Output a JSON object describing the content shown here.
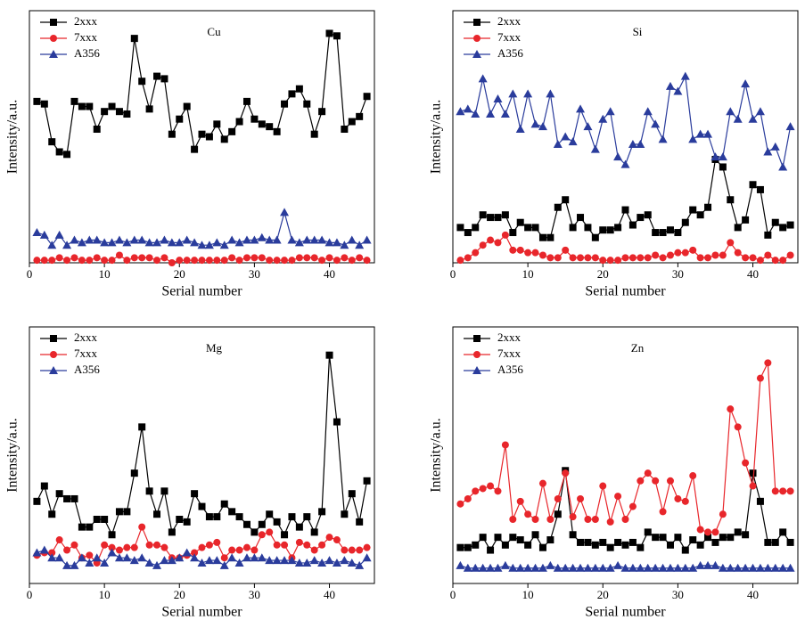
{
  "chart_data": [
    {
      "type": "line",
      "title": "Cu",
      "xlabel": "Serial number",
      "ylabel": "Intensity/a.u.",
      "legend": "upper left",
      "xlim": [
        0,
        46
      ],
      "xticks": [
        0,
        10,
        20,
        30,
        40
      ],
      "ylim": [
        0,
        100
      ],
      "x": [
        1,
        2,
        3,
        4,
        5,
        6,
        7,
        8,
        9,
        10,
        11,
        12,
        13,
        14,
        15,
        16,
        17,
        18,
        19,
        20,
        21,
        22,
        23,
        24,
        25,
        26,
        27,
        28,
        29,
        30,
        31,
        32,
        33,
        34,
        35,
        36,
        37,
        38,
        39,
        40,
        41,
        42,
        43,
        44,
        45
      ],
      "series": [
        {
          "name": "2xxx",
          "color": "#000000",
          "marker": "square",
          "values": [
            64,
            63,
            48,
            44,
            43,
            64,
            62,
            62,
            53,
            60,
            62,
            60,
            59,
            89,
            72,
            61,
            74,
            73,
            51,
            57,
            62,
            45,
            51,
            50,
            55,
            49,
            52,
            56,
            64,
            57,
            55,
            54,
            52,
            63,
            67,
            69,
            63,
            51,
            60,
            91,
            90,
            53,
            56,
            58,
            66
          ]
        },
        {
          "name": "7xxx",
          "color": "#e8262b",
          "marker": "circle",
          "values": [
            1,
            1,
            1,
            2,
            1,
            2,
            1,
            1,
            2,
            1,
            1,
            3,
            1,
            2,
            2,
            2,
            1,
            2,
            0,
            1,
            1,
            1,
            1,
            1,
            1,
            1,
            2,
            1,
            2,
            2,
            2,
            1,
            1,
            1,
            1,
            2,
            2,
            2,
            1,
            2,
            1,
            2,
            1,
            2,
            1
          ]
        },
        {
          "name": "A356",
          "color": "#2a3c9c",
          "marker": "triangle",
          "values": [
            12,
            11,
            7,
            11,
            7,
            9,
            8,
            9,
            9,
            8,
            8,
            9,
            8,
            9,
            9,
            8,
            8,
            9,
            8,
            8,
            9,
            8,
            7,
            7,
            8,
            7,
            9,
            8,
            9,
            9,
            10,
            9,
            9,
            20,
            9,
            8,
            9,
            9,
            9,
            8,
            8,
            7,
            9,
            7,
            9
          ]
        }
      ]
    },
    {
      "type": "line",
      "title": "Si",
      "xlabel": "Serial number",
      "ylabel": "Intensity/a.u.",
      "legend": "upper left",
      "xlim": [
        0,
        46
      ],
      "xticks": [
        0,
        10,
        20,
        30,
        40
      ],
      "ylim": [
        0,
        100
      ],
      "x": [
        1,
        2,
        3,
        4,
        5,
        6,
        7,
        8,
        9,
        10,
        11,
        12,
        13,
        14,
        15,
        16,
        17,
        18,
        19,
        20,
        21,
        22,
        23,
        24,
        25,
        26,
        27,
        28,
        29,
        30,
        31,
        32,
        33,
        34,
        35,
        36,
        37,
        38,
        39,
        40,
        41,
        42,
        43,
        44,
        45
      ],
      "series": [
        {
          "name": "2xxx",
          "color": "#000000",
          "marker": "square",
          "values": [
            14,
            12,
            14,
            19,
            18,
            18,
            19,
            12,
            16,
            14,
            14,
            10,
            10,
            22,
            25,
            14,
            18,
            14,
            10,
            13,
            13,
            14,
            21,
            15,
            18,
            19,
            12,
            12,
            13,
            12,
            16,
            21,
            19,
            22,
            41,
            38,
            25,
            14,
            17,
            31,
            29,
            11,
            16,
            14,
            15
          ]
        },
        {
          "name": "7xxx",
          "color": "#e8262b",
          "marker": "circle",
          "values": [
            1,
            2,
            4,
            7,
            9,
            8,
            11,
            5,
            5,
            4,
            4,
            3,
            2,
            2,
            5,
            2,
            2,
            2,
            2,
            1,
            1,
            1,
            2,
            2,
            2,
            2,
            3,
            2,
            3,
            4,
            4,
            5,
            2,
            2,
            3,
            3,
            8,
            4,
            2,
            2,
            1,
            3,
            1,
            1,
            3
          ]
        },
        {
          "name": "A356",
          "color": "#2a3c9c",
          "marker": "triangle",
          "values": [
            60,
            61,
            59,
            73,
            59,
            65,
            59,
            67,
            53,
            67,
            55,
            54,
            67,
            47,
            50,
            48,
            61,
            54,
            45,
            57,
            60,
            42,
            39,
            47,
            47,
            60,
            55,
            49,
            70,
            68,
            74,
            49,
            51,
            51,
            42,
            42,
            60,
            57,
            71,
            57,
            60,
            44,
            46,
            38,
            54
          ]
        }
      ]
    },
    {
      "type": "line",
      "title": "Mg",
      "xlabel": "Serial number",
      "ylabel": "Intensity/a.u.",
      "legend": "upper left",
      "xlim": [
        0,
        46
      ],
      "xticks": [
        0,
        10,
        20,
        30,
        40
      ],
      "ylim": [
        0,
        100
      ],
      "x": [
        1,
        2,
        3,
        4,
        5,
        6,
        7,
        8,
        9,
        10,
        11,
        12,
        13,
        14,
        15,
        16,
        17,
        18,
        19,
        20,
        21,
        22,
        23,
        24,
        25,
        26,
        27,
        28,
        29,
        30,
        31,
        32,
        33,
        34,
        35,
        36,
        37,
        38,
        39,
        40,
        41,
        42,
        43,
        44,
        45
      ],
      "series": [
        {
          "name": "2xxx",
          "color": "#000000",
          "marker": "square",
          "values": [
            32,
            38,
            27,
            35,
            33,
            33,
            22,
            22,
            25,
            25,
            19,
            28,
            28,
            43,
            61,
            36,
            27,
            36,
            20,
            25,
            24,
            35,
            30,
            26,
            26,
            31,
            28,
            26,
            23,
            20,
            23,
            27,
            24,
            19,
            26,
            22,
            26,
            20,
            28,
            89,
            63,
            27,
            35,
            24,
            40
          ]
        },
        {
          "name": "7xxx",
          "color": "#e8262b",
          "marker": "circle",
          "values": [
            11,
            12,
            12,
            17,
            13,
            15,
            10,
            11,
            8,
            15,
            14,
            13,
            14,
            14,
            22,
            15,
            15,
            14,
            10,
            10,
            11,
            12,
            14,
            15,
            16,
            10,
            13,
            13,
            14,
            13,
            19,
            20,
            15,
            15,
            10,
            16,
            15,
            13,
            15,
            18,
            17,
            13,
            13,
            13,
            14
          ]
        },
        {
          "name": "A356",
          "color": "#2a3c9c",
          "marker": "triangle",
          "values": [
            12,
            13,
            10,
            10,
            7,
            7,
            10,
            8,
            10,
            8,
            12,
            10,
            10,
            9,
            10,
            8,
            7,
            9,
            9,
            10,
            12,
            10,
            8,
            9,
            9,
            7,
            10,
            8,
            10,
            10,
            10,
            9,
            9,
            9,
            9,
            8,
            8,
            9,
            8,
            9,
            8,
            9,
            8,
            7,
            10
          ]
        }
      ]
    },
    {
      "type": "line",
      "title": "Zn",
      "xlabel": "Serial number",
      "ylabel": "Intensity/a.u.",
      "legend": "upper left",
      "xlim": [
        0,
        46
      ],
      "xticks": [
        0,
        10,
        20,
        30,
        40
      ],
      "ylim": [
        0,
        100
      ],
      "x": [
        1,
        2,
        3,
        4,
        5,
        6,
        7,
        8,
        9,
        10,
        11,
        12,
        13,
        14,
        15,
        16,
        17,
        18,
        19,
        20,
        21,
        22,
        23,
        24,
        25,
        26,
        27,
        28,
        29,
        30,
        31,
        32,
        33,
        34,
        35,
        36,
        37,
        38,
        39,
        40,
        41,
        42,
        43,
        44,
        45
      ],
      "series": [
        {
          "name": "2xxx",
          "color": "#000000",
          "marker": "square",
          "values": [
            14,
            14,
            15,
            18,
            13,
            18,
            15,
            18,
            17,
            15,
            19,
            14,
            17,
            27,
            44,
            19,
            16,
            16,
            15,
            16,
            14,
            16,
            15,
            16,
            14,
            20,
            18,
            18,
            15,
            18,
            13,
            17,
            15,
            18,
            16,
            18,
            18,
            20,
            19,
            43,
            32,
            16,
            16,
            20,
            16
          ]
        },
        {
          "name": "7xxx",
          "color": "#e8262b",
          "marker": "circle",
          "values": [
            31,
            33,
            36,
            37,
            38,
            36,
            54,
            25,
            32,
            27,
            25,
            39,
            25,
            33,
            43,
            26,
            33,
            25,
            25,
            38,
            24,
            34,
            25,
            30,
            40,
            43,
            40,
            28,
            40,
            33,
            32,
            42,
            21,
            20,
            20,
            27,
            68,
            61,
            47,
            38,
            80,
            86,
            36,
            36,
            36
          ]
        },
        {
          "name": "A356",
          "color": "#2a3c9c",
          "marker": "triangle",
          "values": [
            7,
            6,
            6,
            6,
            6,
            6,
            7,
            6,
            6,
            6,
            6,
            6,
            7,
            6,
            6,
            6,
            6,
            6,
            6,
            6,
            6,
            7,
            6,
            6,
            6,
            6,
            6,
            6,
            6,
            6,
            6,
            6,
            7,
            7,
            7,
            6,
            6,
            6,
            6,
            6,
            6,
            6,
            6,
            6,
            6
          ]
        }
      ]
    }
  ]
}
